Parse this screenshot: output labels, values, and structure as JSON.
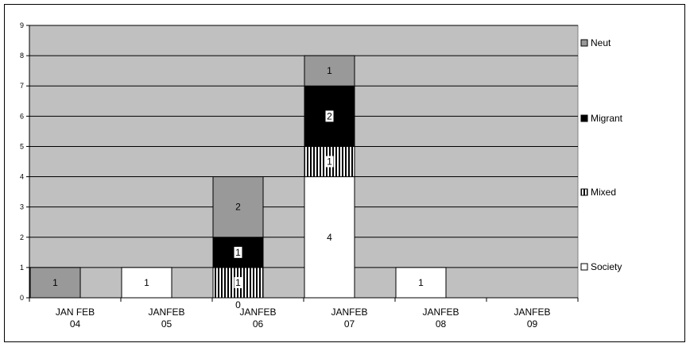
{
  "chart_data": {
    "type": "bar",
    "stacked": true,
    "categories": [
      [
        "JAN FEB",
        "04"
      ],
      [
        "JANFEB",
        "05"
      ],
      [
        "JANFEB",
        "06"
      ],
      [
        "JANFEB",
        "07"
      ],
      [
        "JANFEB",
        "08"
      ],
      [
        "JANFEB",
        "09"
      ]
    ],
    "series": [
      {
        "name": "Society",
        "color": "#ffffff",
        "pattern": "solid",
        "values": [
          0,
          1,
          0,
          4,
          1,
          0
        ],
        "labels": [
          "",
          "1",
          "0",
          "4",
          "1",
          ""
        ]
      },
      {
        "name": "Mixed",
        "color": "#ffffff",
        "pattern": "vertical-stripes",
        "values": [
          0,
          0,
          1,
          1,
          0,
          0
        ],
        "labels": [
          "",
          "",
          "1",
          "1",
          "",
          ""
        ]
      },
      {
        "name": "Migrant",
        "color": "#000000",
        "pattern": "solid",
        "values": [
          0,
          0,
          1,
          2,
          0,
          0
        ],
        "labels": [
          "",
          "",
          "1",
          "2",
          "",
          ""
        ]
      },
      {
        "name": "Neut",
        "color": "#999999",
        "pattern": "solid",
        "values": [
          1,
          0,
          2,
          1,
          0,
          0
        ],
        "labels": [
          "1",
          "",
          "2",
          "1",
          "",
          ""
        ]
      }
    ],
    "y_ticks": [
      "0",
      "1",
      "2",
      "3",
      "4",
      "5",
      "6",
      "7",
      "8",
      "9"
    ],
    "ylim": [
      0,
      9
    ],
    "grid": true,
    "plot_background": "#c0c0c0",
    "legend_order": [
      "Neut",
      "Migrant",
      "Mixed",
      "Society"
    ],
    "legend_position": "right",
    "title": "",
    "xlabel": "",
    "ylabel": ""
  }
}
